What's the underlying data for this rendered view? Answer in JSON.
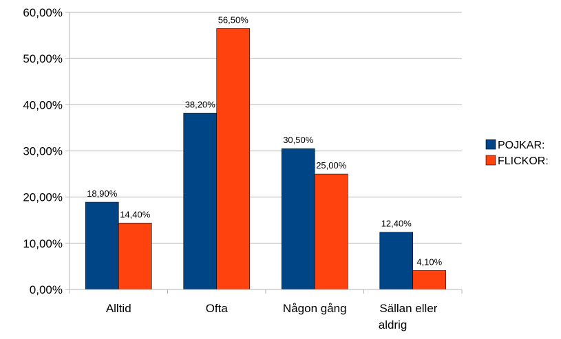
{
  "chart_data": {
    "type": "bar",
    "categories": [
      "Alltid",
      "Ofta",
      "Någon gång",
      "Sällan eller aldrig"
    ],
    "series": [
      {
        "name": "POJKAR:",
        "color": "#004586",
        "values": [
          18.9,
          38.2,
          30.5,
          12.4
        ],
        "value_labels": [
          "18,90%",
          "38,20%",
          "30,50%",
          "12,40%"
        ]
      },
      {
        "name": "FLICKOR:",
        "color": "#ff420e",
        "values": [
          14.4,
          56.5,
          25.0,
          4.1
        ],
        "value_labels": [
          "14,40%",
          "56,50%",
          "25,00%",
          "4,10%"
        ]
      }
    ],
    "ylim": [
      0,
      60
    ],
    "yticks": [
      {
        "value": 0,
        "label": "0,00%"
      },
      {
        "value": 10,
        "label": "10,00%"
      },
      {
        "value": 20,
        "label": "20,00%"
      },
      {
        "value": 30,
        "label": "30,00%"
      },
      {
        "value": 40,
        "label": "40,00%"
      },
      {
        "value": 50,
        "label": "50,00%"
      },
      {
        "value": 60,
        "label": "60,00%"
      }
    ],
    "grid": true,
    "legend": "right"
  }
}
